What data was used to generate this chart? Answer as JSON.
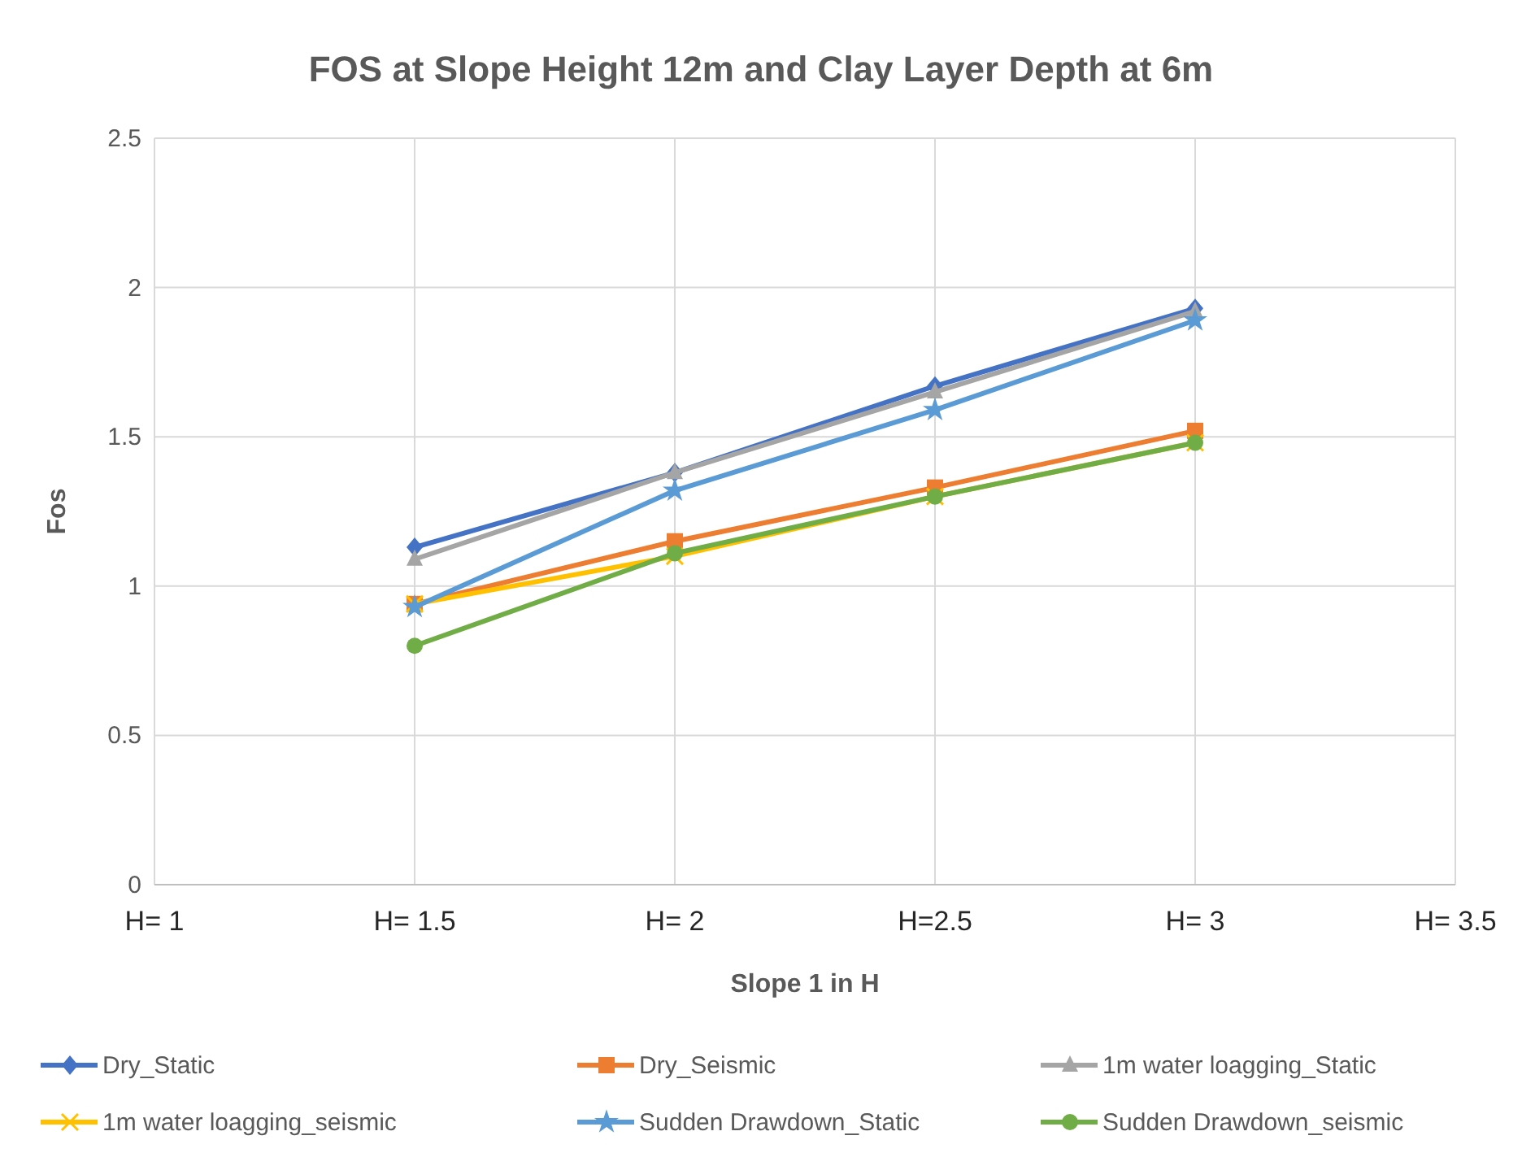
{
  "chart_data": {
    "type": "line",
    "title": "FOS at Slope Height 12m and Clay Layer Depth at 6m",
    "xlabel": "Slope 1 in H",
    "ylabel": "Fos",
    "xlim": [
      1,
      3.5
    ],
    "xticks": [
      {
        "value": 1,
        "label": "H= 1"
      },
      {
        "value": 1.5,
        "label": "H= 1.5"
      },
      {
        "value": 2,
        "label": "H= 2"
      },
      {
        "value": 2.5,
        "label": "H=2.5"
      },
      {
        "value": 3,
        "label": "H= 3"
      },
      {
        "value": 3.5,
        "label": "H= 3.5"
      }
    ],
    "ylim": [
      0,
      2.5
    ],
    "yticks": [
      0,
      0.5,
      1,
      1.5,
      2,
      2.5
    ],
    "grid": true,
    "legend": "bottom",
    "line_style": "solid",
    "x": [
      1.5,
      2,
      2.5,
      3
    ],
    "series": [
      {
        "name": "Dry_Static",
        "color": "#4472c4",
        "marker": "diamond",
        "values": [
          1.13,
          1.38,
          1.67,
          1.93
        ]
      },
      {
        "name": "Dry_Seismic",
        "color": "#ed7d31",
        "marker": "square",
        "values": [
          0.94,
          1.15,
          1.33,
          1.52
        ]
      },
      {
        "name": "1m water loagging_Static",
        "color": "#a5a5a5",
        "marker": "triangle",
        "values": [
          1.09,
          1.38,
          1.65,
          1.92
        ]
      },
      {
        "name": "1m water loagging_seismic",
        "color": "#ffc000",
        "marker": "cross",
        "values": [
          0.94,
          1.1,
          1.3,
          1.48
        ]
      },
      {
        "name": "Sudden Drawdown_Static",
        "color": "#5b9bd5",
        "marker": "star",
        "values": [
          0.93,
          1.32,
          1.59,
          1.89
        ]
      },
      {
        "name": "Sudden Drawdown_seismic",
        "color": "#70ad47",
        "marker": "circle",
        "values": [
          0.8,
          1.11,
          1.3,
          1.48
        ]
      }
    ]
  }
}
